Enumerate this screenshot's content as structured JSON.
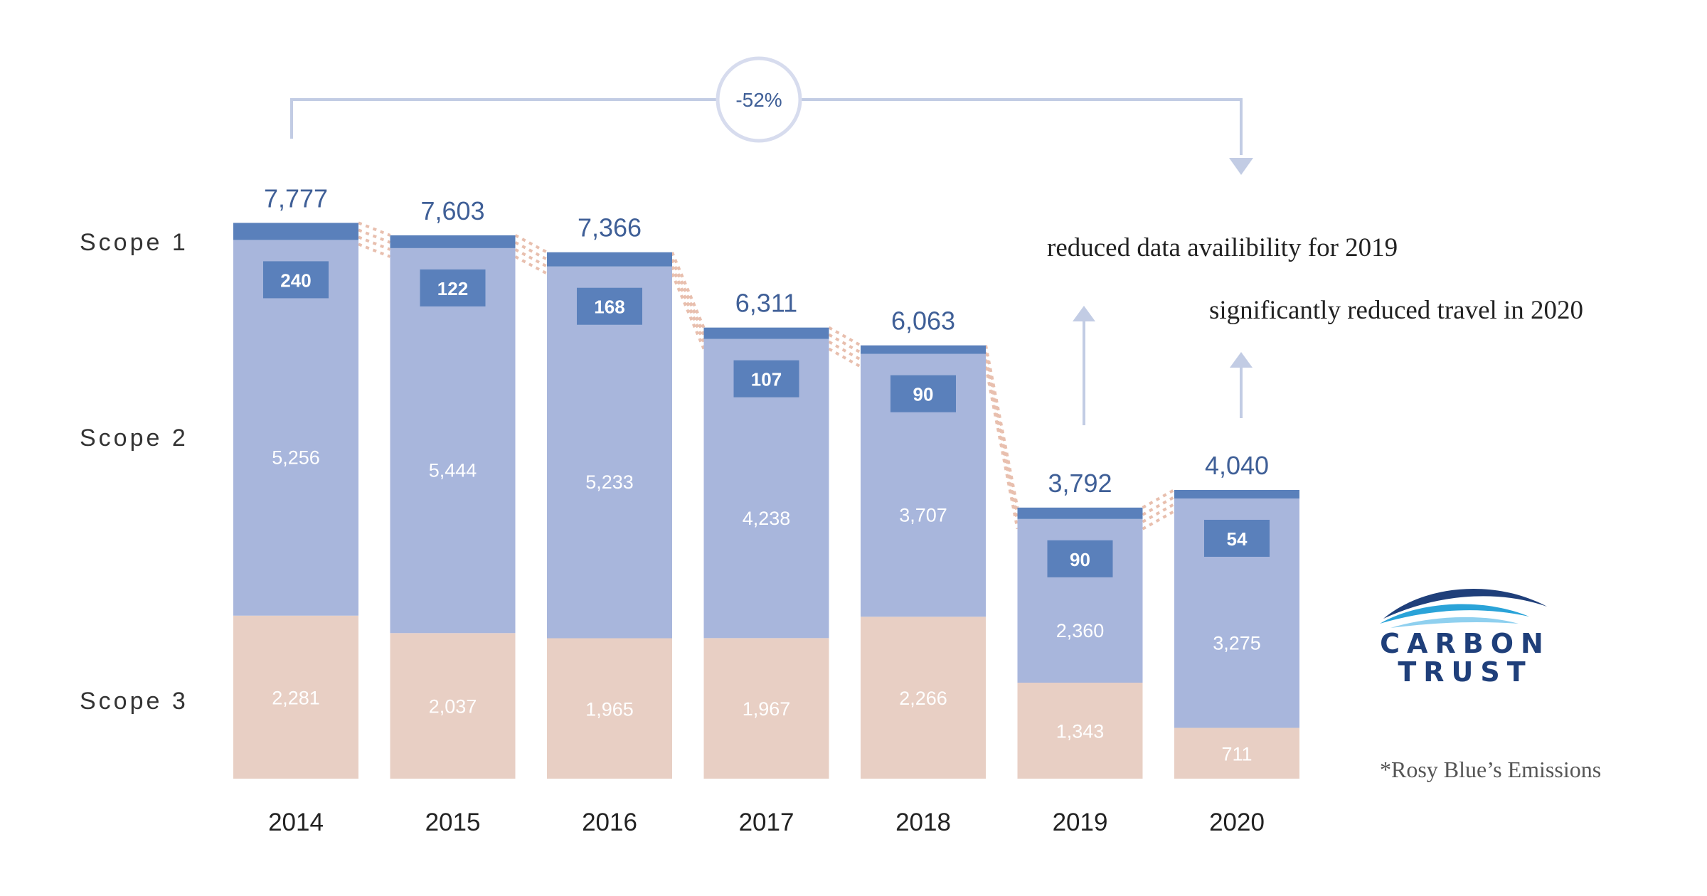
{
  "chart_data": {
    "type": "bar",
    "stacked": true,
    "categories": [
      "2014",
      "2015",
      "2016",
      "2017",
      "2018",
      "2019",
      "2020"
    ],
    "series": [
      {
        "name": "Scope 3",
        "color": "#e8cfc4",
        "values": [
          2281,
          2037,
          1965,
          1967,
          2266,
          1343,
          711
        ]
      },
      {
        "name": "Scope 2",
        "color": "#a8b6dc",
        "values": [
          5256,
          5444,
          5233,
          4238,
          3707,
          2360,
          3275
        ]
      },
      {
        "name": "Scope 1",
        "color": "#5a80bb",
        "values": [
          240,
          122,
          168,
          107,
          90,
          90,
          54
        ]
      }
    ],
    "totals": [
      "7,777",
      "7,603",
      "7,366",
      "6,311",
      "6,063",
      "3,792",
      "4,040"
    ],
    "series_labels": [
      "Scope 1",
      "Scope 2",
      "Scope 3"
    ],
    "value_labels": {
      "scope3": [
        "2,281",
        "2,037",
        "1,965",
        "1,967",
        "2,266",
        "1,343",
        "711"
      ],
      "scope2": [
        "5,256",
        "5,444",
        "5,233",
        "4,238",
        "3,707",
        "2,360",
        "3,275"
      ],
      "scope1": [
        "240",
        "122",
        "168",
        "107",
        "90",
        "90",
        "54"
      ]
    },
    "reduction_label": "-52%",
    "annotations": [
      "reduced data availibility for 2019",
      "significantly reduced travel in 2020"
    ],
    "ylim": [
      0,
      8000
    ]
  },
  "footnote": "*Rosy Blue’s Emissions",
  "logo": {
    "line1": "CARBON",
    "line2": "TRUST"
  },
  "colors": {
    "accent": "#3f5f97",
    "connector": "#c2cce4",
    "dots": "#e8bfae"
  }
}
